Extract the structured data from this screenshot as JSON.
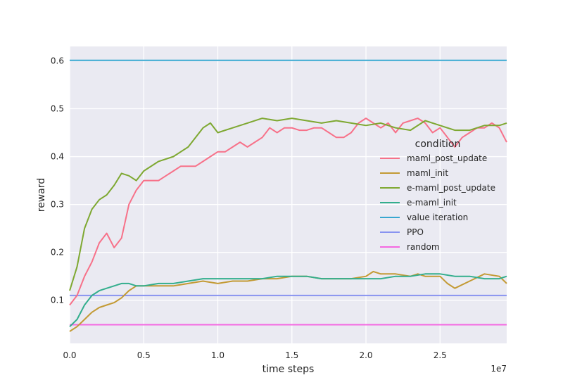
{
  "chart_data": {
    "type": "line",
    "xlabel": "time steps",
    "ylabel": "reward",
    "x_offset_label": "1e7",
    "xlim": [
      0,
      2.95
    ],
    "ylim": [
      0.01,
      0.63
    ],
    "xticks": [
      0.0,
      0.5,
      1.0,
      1.5,
      2.0,
      2.5
    ],
    "xtick_labels": [
      "0.0",
      "0.5",
      "1.0",
      "1.5",
      "2.0",
      "2.5"
    ],
    "yticks": [
      0.1,
      0.2,
      0.3,
      0.4,
      0.5,
      0.6
    ],
    "ytick_labels": [
      "0.1",
      "0.2",
      "0.3",
      "0.4",
      "0.5",
      "0.6"
    ],
    "grid": true,
    "legend": {
      "title": "condition",
      "placement": "right"
    },
    "series": [
      {
        "name": "maml_post_update",
        "color": "#f77189",
        "x": [
          0.0,
          0.05,
          0.1,
          0.15,
          0.2,
          0.25,
          0.3,
          0.35,
          0.4,
          0.45,
          0.5,
          0.55,
          0.6,
          0.65,
          0.7,
          0.75,
          0.8,
          0.85,
          0.9,
          0.95,
          1.0,
          1.05,
          1.1,
          1.15,
          1.2,
          1.25,
          1.3,
          1.35,
          1.4,
          1.45,
          1.5,
          1.55,
          1.6,
          1.65,
          1.7,
          1.75,
          1.8,
          1.85,
          1.9,
          1.95,
          2.0,
          2.05,
          2.1,
          2.15,
          2.2,
          2.25,
          2.3,
          2.35,
          2.4,
          2.45,
          2.5,
          2.55,
          2.6,
          2.65,
          2.7,
          2.75,
          2.8,
          2.85,
          2.9,
          2.95
        ],
        "y": [
          0.09,
          0.11,
          0.15,
          0.18,
          0.22,
          0.24,
          0.21,
          0.23,
          0.3,
          0.33,
          0.35,
          0.35,
          0.35,
          0.36,
          0.37,
          0.38,
          0.38,
          0.38,
          0.39,
          0.4,
          0.41,
          0.41,
          0.42,
          0.43,
          0.42,
          0.43,
          0.44,
          0.46,
          0.45,
          0.46,
          0.46,
          0.455,
          0.455,
          0.46,
          0.46,
          0.45,
          0.44,
          0.44,
          0.45,
          0.47,
          0.48,
          0.47,
          0.46,
          0.47,
          0.45,
          0.47,
          0.475,
          0.48,
          0.47,
          0.45,
          0.46,
          0.44,
          0.42,
          0.44,
          0.45,
          0.46,
          0.46,
          0.47,
          0.46,
          0.43
        ]
      },
      {
        "name": "maml_init",
        "color": "#c39a34",
        "x": [
          0.0,
          0.05,
          0.1,
          0.15,
          0.2,
          0.25,
          0.3,
          0.35,
          0.4,
          0.45,
          0.5,
          0.55,
          0.6,
          0.7,
          0.8,
          0.9,
          1.0,
          1.1,
          1.2,
          1.3,
          1.4,
          1.5,
          1.6,
          1.7,
          1.8,
          1.9,
          2.0,
          2.05,
          2.1,
          2.2,
          2.3,
          2.35,
          2.4,
          2.5,
          2.55,
          2.6,
          2.7,
          2.8,
          2.9,
          2.95
        ],
        "y": [
          0.035,
          0.045,
          0.06,
          0.075,
          0.085,
          0.09,
          0.095,
          0.105,
          0.12,
          0.13,
          0.13,
          0.13,
          0.13,
          0.13,
          0.135,
          0.14,
          0.135,
          0.14,
          0.14,
          0.145,
          0.145,
          0.15,
          0.15,
          0.145,
          0.145,
          0.145,
          0.15,
          0.16,
          0.155,
          0.155,
          0.15,
          0.155,
          0.15,
          0.15,
          0.135,
          0.125,
          0.14,
          0.155,
          0.15,
          0.135
        ]
      },
      {
        "name": "e-maml_post_update",
        "color": "#7ea831",
        "x": [
          0.0,
          0.05,
          0.1,
          0.15,
          0.2,
          0.25,
          0.3,
          0.35,
          0.4,
          0.45,
          0.5,
          0.6,
          0.7,
          0.8,
          0.9,
          0.95,
          1.0,
          1.1,
          1.2,
          1.3,
          1.4,
          1.5,
          1.6,
          1.7,
          1.8,
          1.9,
          2.0,
          2.1,
          2.2,
          2.3,
          2.4,
          2.5,
          2.6,
          2.7,
          2.8,
          2.9,
          2.95
        ],
        "y": [
          0.12,
          0.17,
          0.25,
          0.29,
          0.31,
          0.32,
          0.34,
          0.365,
          0.36,
          0.35,
          0.37,
          0.39,
          0.4,
          0.42,
          0.46,
          0.47,
          0.45,
          0.46,
          0.47,
          0.48,
          0.475,
          0.48,
          0.475,
          0.47,
          0.475,
          0.47,
          0.465,
          0.47,
          0.46,
          0.455,
          0.475,
          0.465,
          0.455,
          0.455,
          0.465,
          0.465,
          0.47
        ]
      },
      {
        "name": "e-maml_init",
        "color": "#33ae8d",
        "x": [
          0.0,
          0.05,
          0.1,
          0.15,
          0.2,
          0.25,
          0.3,
          0.35,
          0.4,
          0.45,
          0.5,
          0.6,
          0.7,
          0.8,
          0.9,
          1.0,
          1.1,
          1.2,
          1.3,
          1.4,
          1.5,
          1.6,
          1.7,
          1.8,
          1.9,
          2.0,
          2.1,
          2.2,
          2.3,
          2.4,
          2.5,
          2.6,
          2.7,
          2.8,
          2.9,
          2.95
        ],
        "y": [
          0.045,
          0.06,
          0.09,
          0.11,
          0.12,
          0.125,
          0.13,
          0.135,
          0.135,
          0.13,
          0.13,
          0.135,
          0.135,
          0.14,
          0.145,
          0.145,
          0.145,
          0.145,
          0.145,
          0.15,
          0.15,
          0.15,
          0.145,
          0.145,
          0.145,
          0.145,
          0.145,
          0.15,
          0.15,
          0.155,
          0.155,
          0.15,
          0.15,
          0.145,
          0.145,
          0.15
        ]
      },
      {
        "name": "value iteration",
        "color": "#38a7d0",
        "x": [
          0.0,
          2.95
        ],
        "y": [
          0.601,
          0.601
        ]
      },
      {
        "name": "PPO",
        "color": "#8893f0",
        "x": [
          0.0,
          2.95
        ],
        "y": [
          0.11,
          0.11
        ]
      },
      {
        "name": "random",
        "color": "#f468e1",
        "x": [
          0.0,
          2.95
        ],
        "y": [
          0.049,
          0.049
        ]
      }
    ]
  }
}
